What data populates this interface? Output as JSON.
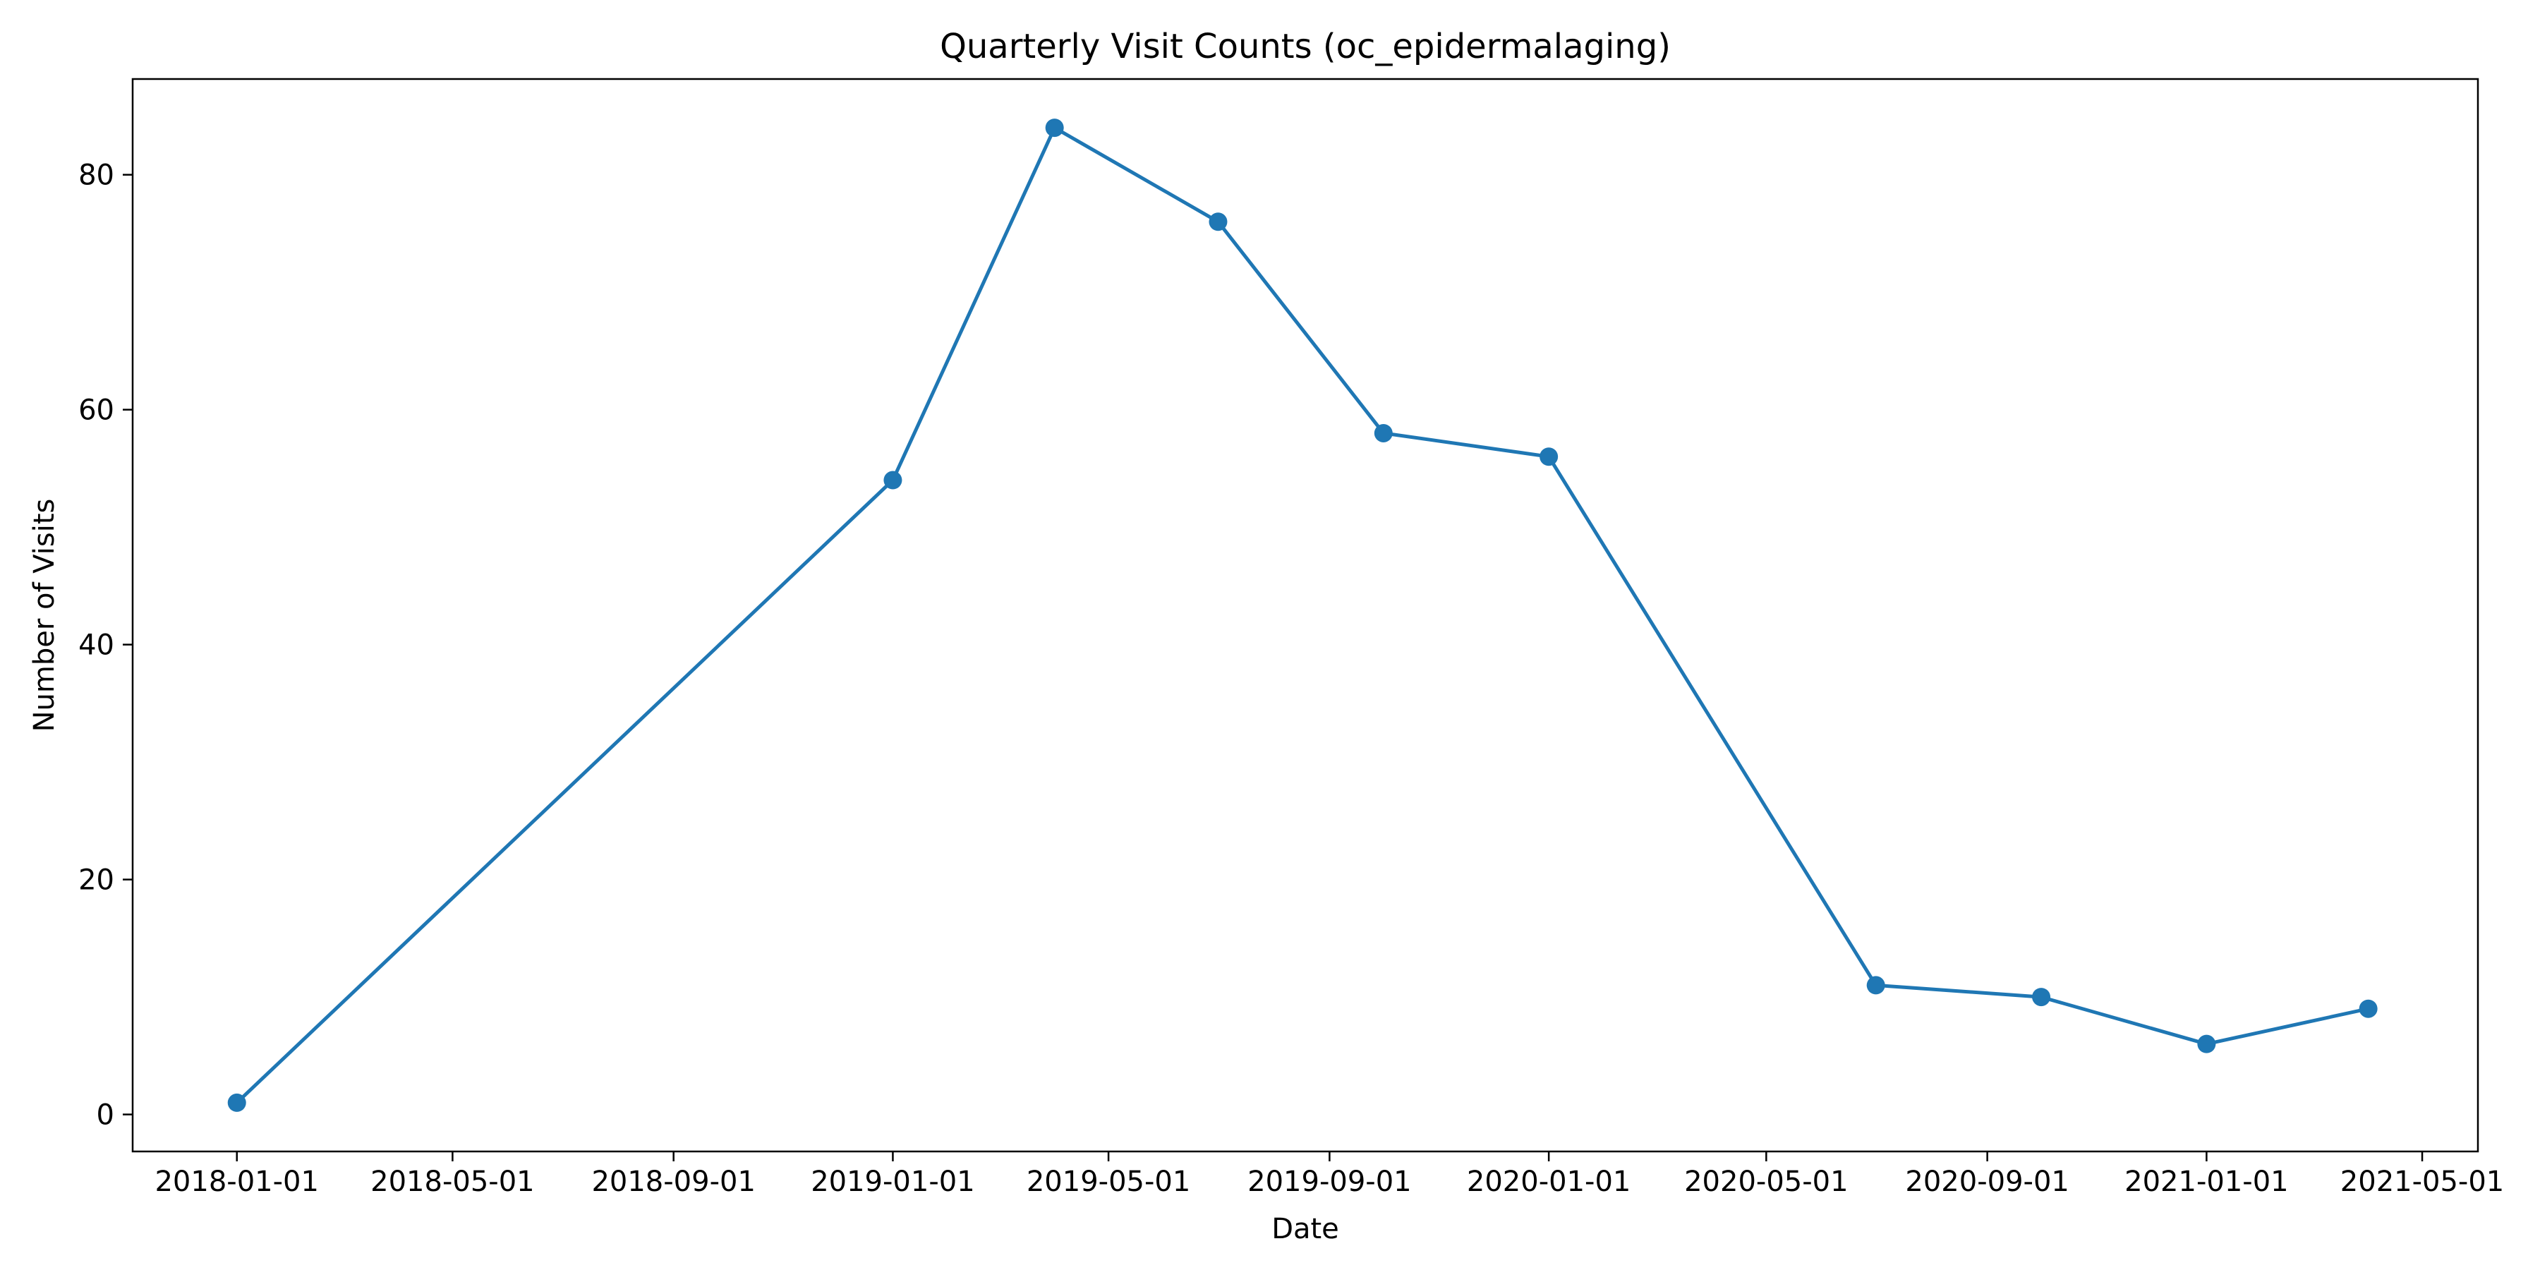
{
  "chart_data": {
    "type": "line",
    "title": "Quarterly Visit Counts (oc_epidermalaging)",
    "xlabel": "Date",
    "ylabel": "Number of Visits",
    "x_axis_type": "date",
    "xlim": [
      "2017-11-04",
      "2021-06-01"
    ],
    "ylim": [
      -3.15,
      88.15
    ],
    "x_ticks": [
      "2018-01-01",
      "2018-05-01",
      "2018-09-01",
      "2019-01-01",
      "2019-05-01",
      "2019-09-01",
      "2020-01-01",
      "2020-05-01",
      "2020-09-01",
      "2021-01-01",
      "2021-05-01"
    ],
    "y_ticks": [
      0,
      20,
      40,
      60,
      80
    ],
    "grid": false,
    "legend": "none",
    "series": [
      {
        "color": "#1f77b4",
        "marker": "circle",
        "points": [
          {
            "x": "2018-01-01",
            "y": 1
          },
          {
            "x": "2019-01-01",
            "y": 54
          },
          {
            "x": "2019-04-01",
            "y": 84
          },
          {
            "x": "2019-07-01",
            "y": 76
          },
          {
            "x": "2019-10-01",
            "y": 58
          },
          {
            "x": "2020-01-01",
            "y": 56
          },
          {
            "x": "2020-07-01",
            "y": 11
          },
          {
            "x": "2020-10-01",
            "y": 10
          },
          {
            "x": "2021-01-01",
            "y": 6
          },
          {
            "x": "2021-04-01",
            "y": 9
          }
        ]
      }
    ]
  }
}
